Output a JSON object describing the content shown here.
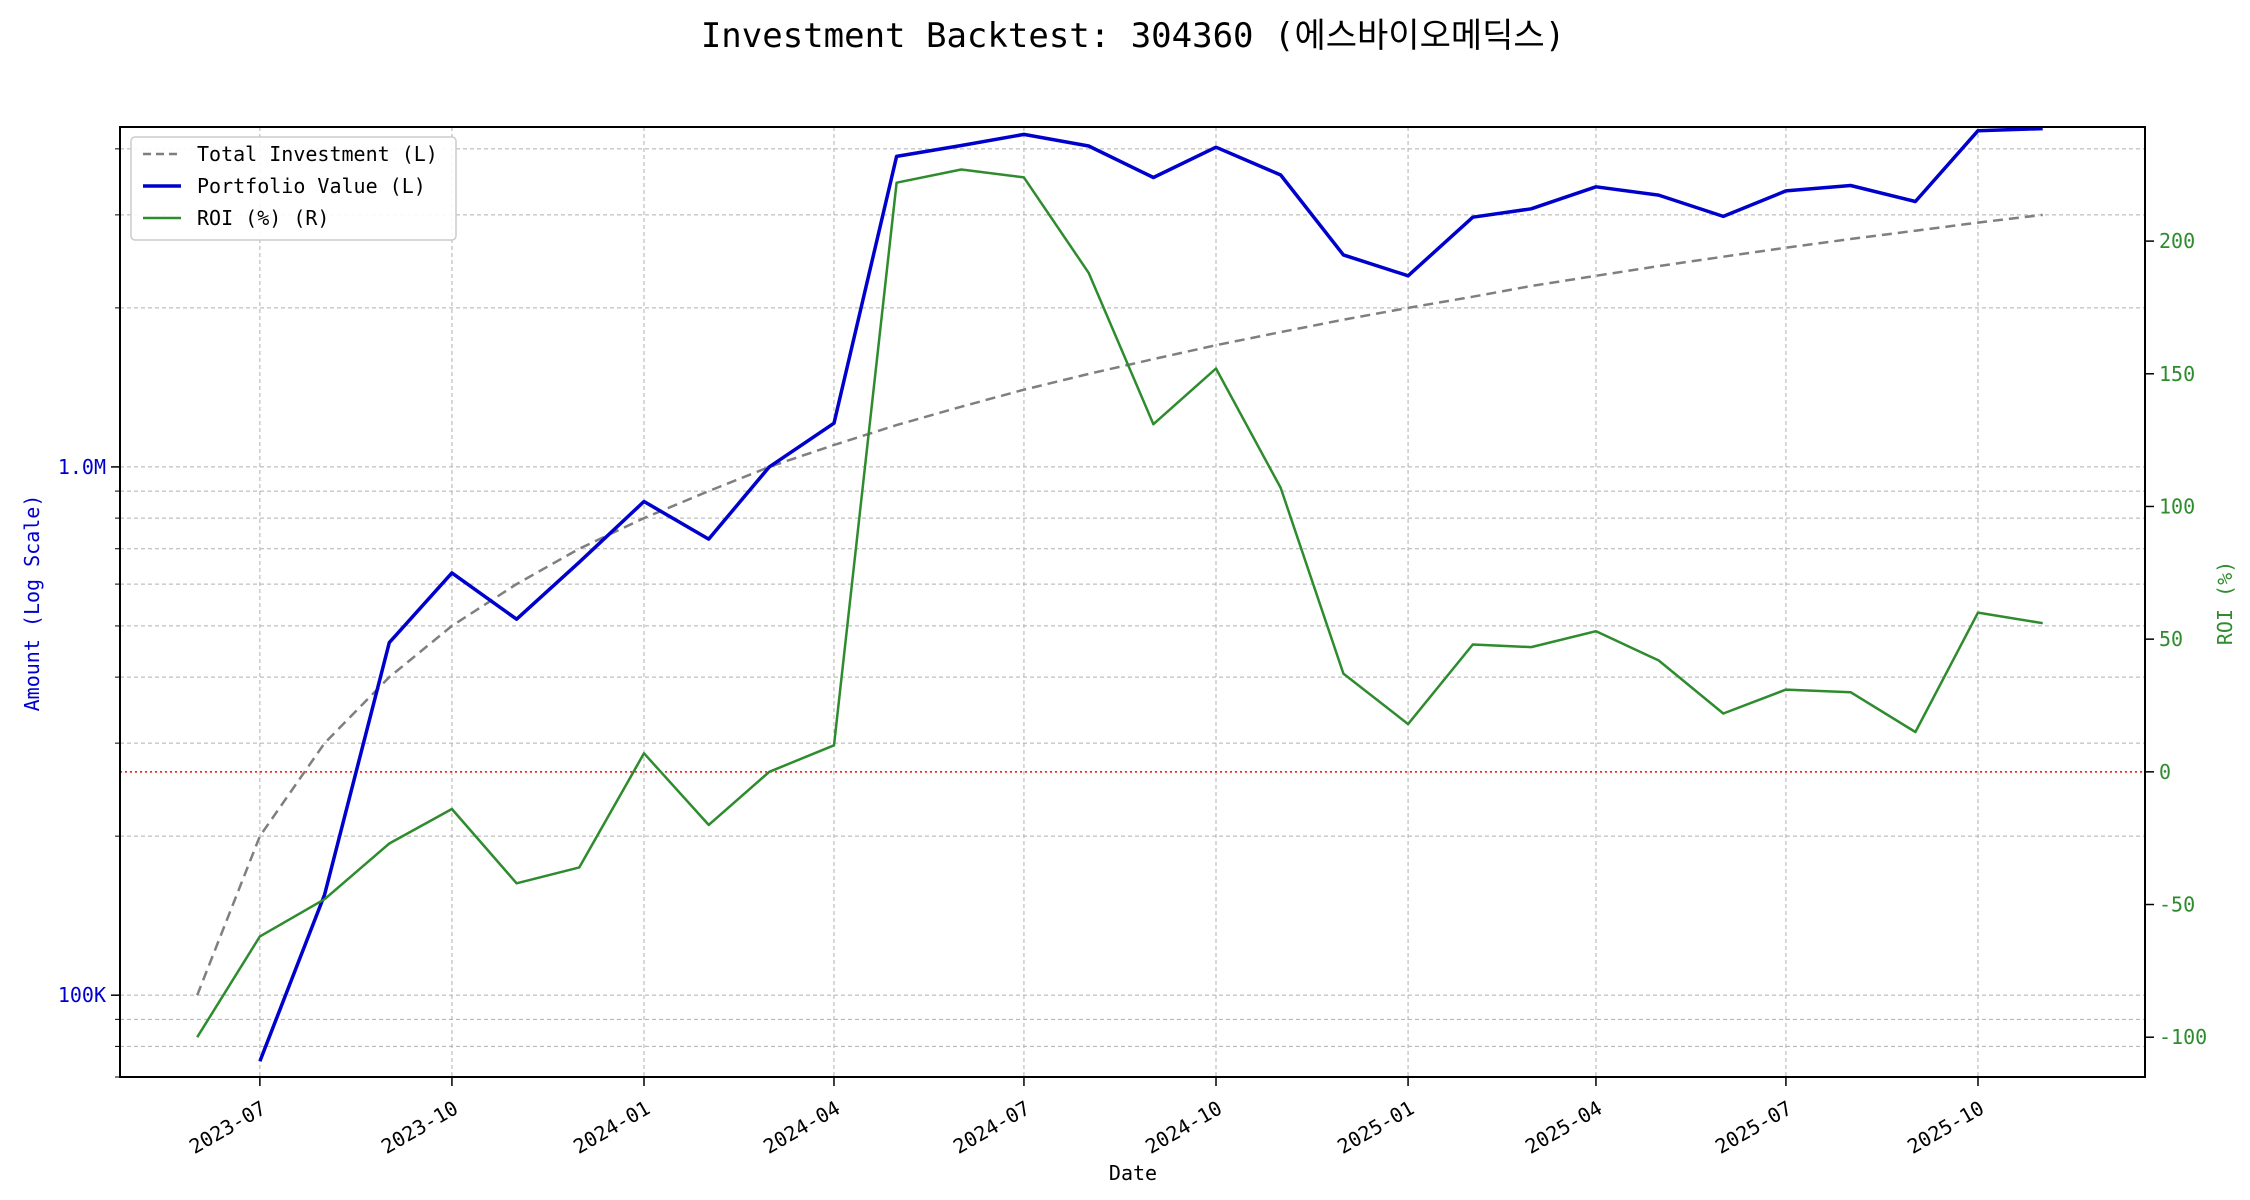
{
  "chart_data": {
    "type": "line",
    "title": "Investment Backtest: 304360 (에스바이오메딕스)",
    "xlabel": "Date",
    "ylabel_left": "Amount (Log Scale)",
    "ylabel_right": "ROI (%)",
    "x_ticks": [
      "2023-07",
      "2023-10",
      "2024-01",
      "2024-04",
      "2024-07",
      "2024-10",
      "2025-01",
      "2025-04",
      "2025-07",
      "2025-10"
    ],
    "left_axis": {
      "scale": "log",
      "ylim": [
        70000,
        4400000
      ],
      "tick_values": [
        100000,
        1000000
      ],
      "tick_labels": [
        "100K",
        "1.0M"
      ]
    },
    "right_axis": {
      "ylim": [
        -115,
        243
      ],
      "tick_values": [
        -100,
        -50,
        0,
        50,
        100,
        150,
        200
      ],
      "tick_labels": [
        "-100",
        "-50",
        "0",
        "50",
        "100",
        "150",
        "200"
      ]
    },
    "x": [
      "2023-06-01",
      "2023-07-01",
      "2023-08-01",
      "2023-09-01",
      "2023-10-01",
      "2023-11-01",
      "2023-12-01",
      "2024-01-01",
      "2024-02-01",
      "2024-03-01",
      "2024-04-01",
      "2024-05-01",
      "2024-06-01",
      "2024-07-01",
      "2024-08-01",
      "2024-09-01",
      "2024-10-01",
      "2024-11-01",
      "2024-12-01",
      "2025-01-01",
      "2025-02-01",
      "2025-03-01",
      "2025-04-01",
      "2025-05-01",
      "2025-06-01",
      "2025-07-01",
      "2025-08-01",
      "2025-09-01",
      "2025-10-01",
      "2025-11-01"
    ],
    "series": [
      {
        "name": "Total Investment (L)",
        "axis": "left",
        "color": "#7f7f7f",
        "dash": "dashed",
        "values": [
          100000,
          200000,
          300000,
          400000,
          500000,
          600000,
          700000,
          800000,
          900000,
          1000000,
          1100000,
          1200000,
          1300000,
          1400000,
          1500000,
          1600000,
          1700000,
          1800000,
          1900000,
          2000000,
          2100000,
          2200000,
          2300000,
          2400000,
          2500000,
          2600000,
          2700000,
          2800000,
          2900000,
          3000000
        ]
      },
      {
        "name": "Portfolio Value (L)",
        "axis": "left",
        "color": "#0000cc",
        "dash": "solid",
        "values": [
          null,
          75000,
          155000,
          465000,
          630000,
          515000,
          660000,
          860000,
          730000,
          1000000,
          1210000,
          3870000,
          4060000,
          4260000,
          4050000,
          3530000,
          4030000,
          3570000,
          2520000,
          2300000,
          2970000,
          3080000,
          3390000,
          3270000,
          2980000,
          3330000,
          3410000,
          3180000,
          4330000,
          4370000
        ]
      },
      {
        "name": "ROI (%) (R)",
        "axis": "right",
        "color": "#2e8b2e",
        "dash": "solid",
        "values": [
          -100,
          -62,
          -48,
          -27,
          -14,
          -42,
          -36,
          7,
          -20,
          0,
          10,
          222,
          227,
          224,
          188,
          131,
          152,
          107,
          37,
          18,
          48,
          47,
          53,
          42,
          22,
          31,
          30,
          15,
          60,
          56
        ]
      }
    ],
    "reference_lines": [
      {
        "axis": "right",
        "value": 0,
        "color": "#ff0000",
        "style": "dotted"
      }
    ],
    "legend": {
      "placement": "top-left"
    },
    "grid": true
  }
}
